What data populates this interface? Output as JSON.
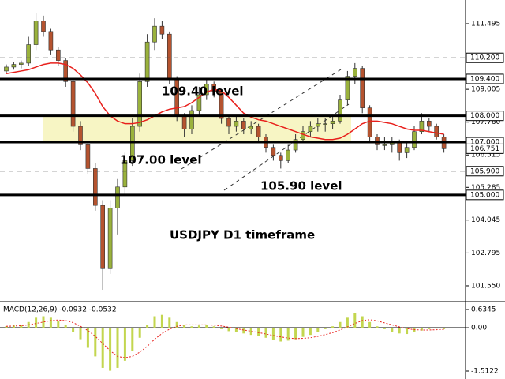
{
  "chart_data": {
    "type": "candlestick",
    "bull_color": "#9ab23c",
    "bear_color": "#b5532f",
    "ylim": [
      101.01,
      112.394
    ],
    "yticks": [
      111.495,
      109.005,
      {
        "value": 107.76,
        "label": "107.760"
      },
      106.515,
      105.285,
      104.045,
      102.795,
      {
        "value": 101.55,
        "label": "101.550"
      }
    ],
    "levels": [
      {
        "value": 110.2,
        "label": "110.200",
        "style": "dashed"
      },
      {
        "value": 109.4,
        "label": "109.400",
        "style": "solid"
      },
      {
        "value": 108.0,
        "label": "108.000",
        "style": "solid"
      },
      {
        "value": 107.0,
        "label": "107.000",
        "style": "solid"
      },
      {
        "value": 105.9,
        "label": "105.900",
        "style": "dashed"
      },
      {
        "value": 105.0,
        "label": "105.000",
        "style": "solid"
      }
    ],
    "zone_color": "#f7f5c4",
    "last_price": 106.751,
    "annotations": [
      "109.40 level",
      "107.00 level",
      "105.90 level",
      "USDJPY D1 timeframe"
    ],
    "candles": [
      [
        109.7,
        109.95,
        109.6,
        109.85
      ],
      [
        109.85,
        110.05,
        109.75,
        109.95
      ],
      [
        109.95,
        110.1,
        109.8,
        110.0
      ],
      [
        110.0,
        111.0,
        109.9,
        110.7
      ],
      [
        110.7,
        111.9,
        110.5,
        111.6
      ],
      [
        111.6,
        111.8,
        111.0,
        111.2
      ],
      [
        111.2,
        111.3,
        110.3,
        110.5
      ],
      [
        110.5,
        110.6,
        109.9,
        110.1
      ],
      [
        110.1,
        110.2,
        109.1,
        109.3
      ],
      [
        109.3,
        109.4,
        107.4,
        107.6
      ],
      [
        107.6,
        107.8,
        106.7,
        106.9
      ],
      [
        106.9,
        107.0,
        105.8,
        106.0
      ],
      [
        106.0,
        106.2,
        104.4,
        104.6
      ],
      [
        104.6,
        104.8,
        101.4,
        102.2
      ],
      [
        102.2,
        104.8,
        102.0,
        104.5
      ],
      [
        104.5,
        105.6,
        103.5,
        105.3
      ],
      [
        105.3,
        106.6,
        105.0,
        106.3
      ],
      [
        106.3,
        107.9,
        106.1,
        107.6
      ],
      [
        107.6,
        109.6,
        107.4,
        109.3
      ],
      [
        109.3,
        111.1,
        109.1,
        110.8
      ],
      [
        110.8,
        111.7,
        110.5,
        111.4
      ],
      [
        111.4,
        111.6,
        110.9,
        111.1
      ],
      [
        111.1,
        111.2,
        109.2,
        109.4
      ],
      [
        109.4,
        109.5,
        107.8,
        108.0
      ],
      [
        108.0,
        108.1,
        107.2,
        107.5
      ],
      [
        107.5,
        108.4,
        107.3,
        108.2
      ],
      [
        108.2,
        109.1,
        108.0,
        108.8
      ],
      [
        108.8,
        109.4,
        108.6,
        109.2
      ],
      [
        109.2,
        109.3,
        108.7,
        108.9
      ],
      [
        108.9,
        109.0,
        107.7,
        107.9
      ],
      [
        107.9,
        108.0,
        107.3,
        107.6
      ],
      [
        107.6,
        108.0,
        107.4,
        107.8
      ],
      [
        107.8,
        107.9,
        107.3,
        107.5
      ],
      [
        107.5,
        107.8,
        107.3,
        107.6
      ],
      [
        107.6,
        107.7,
        107.0,
        107.2
      ],
      [
        107.2,
        107.3,
        106.6,
        106.8
      ],
      [
        106.8,
        106.9,
        106.3,
        106.5
      ],
      [
        106.5,
        106.6,
        106.0,
        106.3
      ],
      [
        106.3,
        106.9,
        106.2,
        106.7
      ],
      [
        106.7,
        107.3,
        106.6,
        107.1
      ],
      [
        107.1,
        107.6,
        107.0,
        107.4
      ],
      [
        107.4,
        107.8,
        107.2,
        107.6
      ],
      [
        107.6,
        107.9,
        107.4,
        107.7
      ],
      [
        107.7,
        107.9,
        107.4,
        107.7
      ],
      [
        107.7,
        108.0,
        107.5,
        107.8
      ],
      [
        107.8,
        108.8,
        107.7,
        108.6
      ],
      [
        108.6,
        109.7,
        108.4,
        109.5
      ],
      [
        109.5,
        110.0,
        109.2,
        109.8
      ],
      [
        109.8,
        109.9,
        108.1,
        108.3
      ],
      [
        108.3,
        108.4,
        107.0,
        107.2
      ],
      [
        107.2,
        107.3,
        106.7,
        106.9
      ],
      [
        106.9,
        107.2,
        106.7,
        106.9
      ],
      [
        106.9,
        107.2,
        106.6,
        107.0
      ],
      [
        107.0,
        107.1,
        106.3,
        106.6
      ],
      [
        106.6,
        107.0,
        106.4,
        106.8
      ],
      [
        106.8,
        107.6,
        106.7,
        107.4
      ],
      [
        107.4,
        108.1,
        107.3,
        107.8
      ],
      [
        107.8,
        107.9,
        107.4,
        107.6
      ],
      [
        107.6,
        107.7,
        107.1,
        107.2
      ],
      [
        107.2,
        107.3,
        106.6,
        106.751
      ]
    ],
    "ma": {
      "color": "#e8201c",
      "values": [
        109.6,
        109.65,
        109.7,
        109.75,
        109.85,
        109.95,
        110.0,
        110.0,
        109.95,
        109.8,
        109.55,
        109.25,
        108.85,
        108.35,
        108.0,
        107.8,
        107.7,
        107.7,
        107.75,
        107.85,
        108.0,
        108.15,
        108.25,
        108.3,
        108.35,
        108.5,
        108.7,
        108.9,
        109.0,
        108.95,
        108.7,
        108.4,
        108.1,
        107.95,
        107.85,
        107.8,
        107.7,
        107.6,
        107.5,
        107.4,
        107.3,
        107.2,
        107.15,
        107.1,
        107.1,
        107.15,
        107.3,
        107.5,
        107.7,
        107.8,
        107.8,
        107.75,
        107.7,
        107.6,
        107.5,
        107.45,
        107.45,
        107.4,
        107.35,
        107.3
      ]
    },
    "macd": {
      "label": "MACD(12,26,9) -0.0932 -0.0532",
      "ylim": [
        -1.732,
        0.827
      ],
      "yticks": [
        0.6345,
        {
          "value": 0,
          "label": "0.00"
        },
        -1.5122
      ],
      "histogram": {
        "color": "#c3d64f",
        "values": [
          0.05,
          0.08,
          0.1,
          0.2,
          0.35,
          0.4,
          0.35,
          0.25,
          0.1,
          -0.15,
          -0.4,
          -0.7,
          -1.0,
          -1.4,
          -1.5,
          -1.4,
          -1.15,
          -0.8,
          -0.35,
          0.1,
          0.4,
          0.45,
          0.35,
          0.2,
          0.1,
          0.05,
          0.08,
          0.1,
          0.05,
          -0.05,
          -0.12,
          -0.15,
          -0.2,
          -0.25,
          -0.3,
          -0.35,
          -0.42,
          -0.48,
          -0.45,
          -0.4,
          -0.32,
          -0.25,
          -0.15,
          -0.05,
          0.05,
          0.2,
          0.35,
          0.5,
          0.4,
          0.2,
          0.05,
          -0.05,
          -0.15,
          -0.2,
          -0.22,
          -0.15,
          -0.1,
          -0.05,
          -0.03,
          -0.05
        ]
      },
      "signal": {
        "color": "#e8201c",
        "values": [
          0.05,
          0.06,
          0.07,
          0.1,
          0.15,
          0.2,
          0.25,
          0.27,
          0.25,
          0.18,
          0.05,
          -0.1,
          -0.3,
          -0.55,
          -0.8,
          -1.0,
          -1.05,
          -1.0,
          -0.85,
          -0.65,
          -0.4,
          -0.2,
          -0.05,
          0.05,
          0.1,
          0.1,
          0.1,
          0.1,
          0.09,
          0.06,
          0.02,
          -0.03,
          -0.08,
          -0.12,
          -0.17,
          -0.22,
          -0.27,
          -0.32,
          -0.36,
          -0.38,
          -0.37,
          -0.35,
          -0.3,
          -0.24,
          -0.17,
          -0.08,
          0.03,
          0.15,
          0.25,
          0.28,
          0.24,
          0.17,
          0.1,
          0.03,
          -0.03,
          -0.07,
          -0.08,
          -0.08,
          -0.07,
          -0.06
        ]
      }
    }
  }
}
